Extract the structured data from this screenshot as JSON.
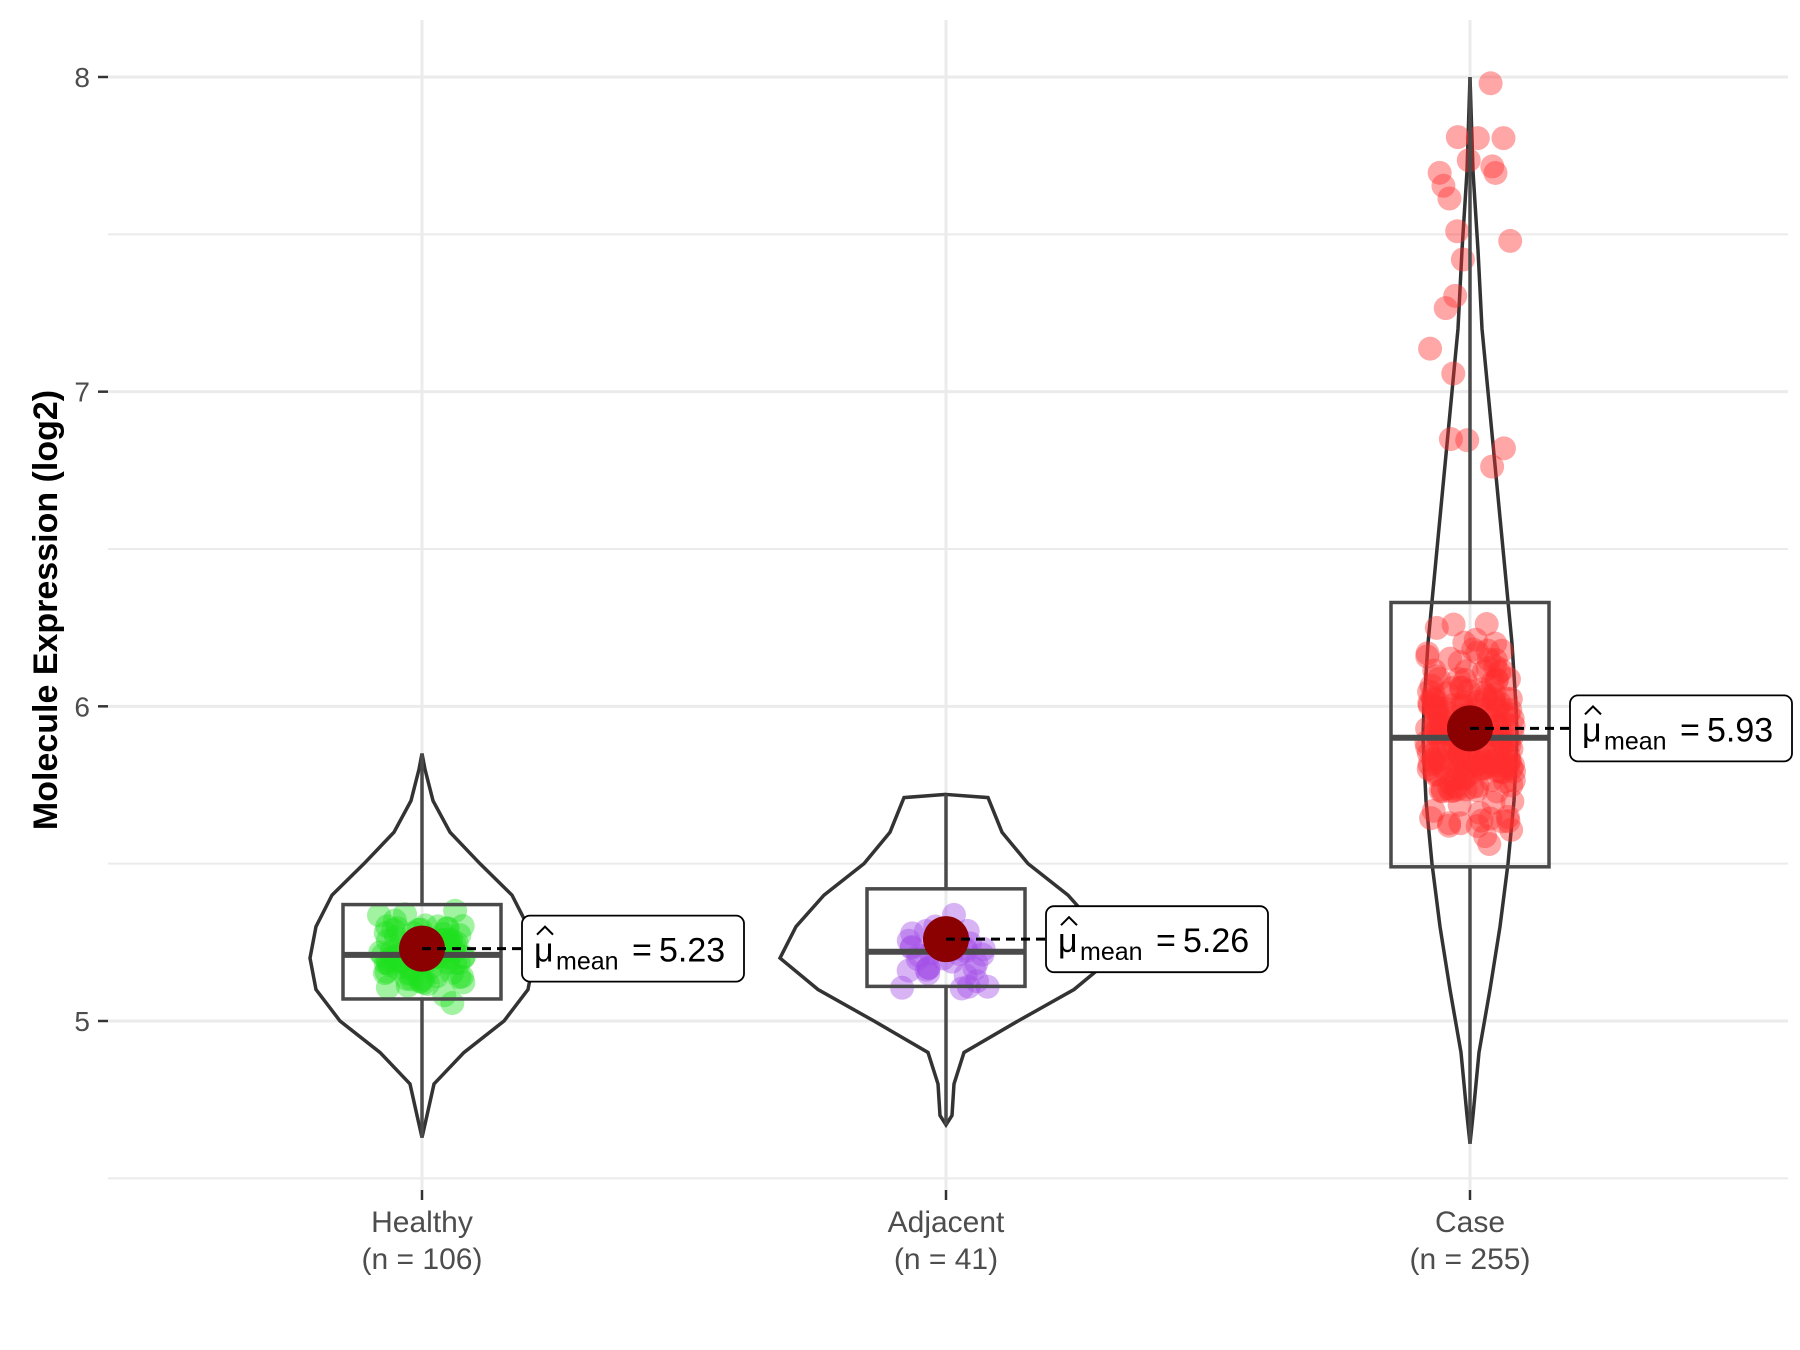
{
  "chart_data": {
    "type": "violin",
    "title": "",
    "xlabel": "",
    "ylabel": "Molecule Expression (log2)",
    "ylim": [
      4.5,
      8.2
    ],
    "yticks": [
      5,
      6,
      7,
      8
    ],
    "grid": true,
    "groups": [
      {
        "name": "Healthy",
        "n_label": "(n = 106)",
        "color": "#1ee01e",
        "mean": 5.23,
        "median": 5.21,
        "q1": 5.07,
        "q3": 5.37,
        "whisker_low": 4.63,
        "whisker_high": 5.85,
        "mean_label": "5.23",
        "mean_symbol": "μ",
        "mean_subscript": "mean"
      },
      {
        "name": "Adjacent",
        "n_label": "(n = 41)",
        "color": "#a24de8",
        "mean": 5.26,
        "median": 5.22,
        "q1": 5.11,
        "q3": 5.42,
        "whisker_low": 4.67,
        "whisker_high": 5.72,
        "mean_label": "5.26",
        "mean_symbol": "μ",
        "mean_subscript": "mean"
      },
      {
        "name": "Case",
        "n_label": "(n = 255)",
        "color": "#ff2e2e",
        "mean": 5.93,
        "median": 5.9,
        "q1": 5.49,
        "q3": 6.33,
        "whisker_low": 4.61,
        "whisker_high": 8.0,
        "mean_label": "5.93",
        "mean_symbol": "μ",
        "mean_subscript": "mean"
      }
    ]
  }
}
